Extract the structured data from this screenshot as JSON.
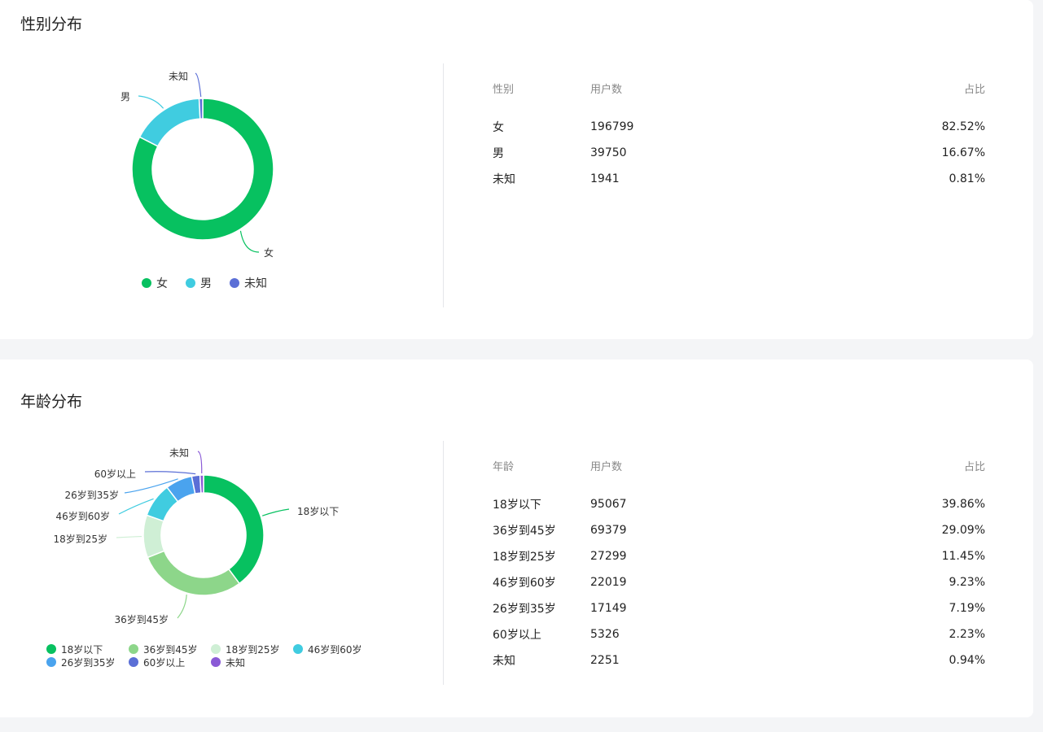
{
  "gender": {
    "title": "性别分布",
    "table_headers": [
      "性别",
      "用户数",
      "占比"
    ],
    "rows": [
      {
        "label": "女",
        "count": "196799",
        "pct": "82.52%"
      },
      {
        "label": "男",
        "count": "39750",
        "pct": "16.67%"
      },
      {
        "label": "未知",
        "count": "1941",
        "pct": "0.81%"
      }
    ]
  },
  "age": {
    "title": "年龄分布",
    "table_headers": [
      "年龄",
      "用户数",
      "占比"
    ],
    "rows": [
      {
        "label": "18岁以下",
        "count": "95067",
        "pct": "39.86%"
      },
      {
        "label": "36岁到45岁",
        "count": "69379",
        "pct": "29.09%"
      },
      {
        "label": "18岁到25岁",
        "count": "27299",
        "pct": "11.45%"
      },
      {
        "label": "46岁到60岁",
        "count": "22019",
        "pct": "9.23%"
      },
      {
        "label": "26岁到35岁",
        "count": "17149",
        "pct": "7.19%"
      },
      {
        "label": "60岁以上",
        "count": "5326",
        "pct": "2.23%"
      },
      {
        "label": "未知",
        "count": "2251",
        "pct": "0.94%"
      }
    ]
  },
  "chart_data": [
    {
      "type": "pie",
      "title": "性别分布",
      "categories": [
        "女",
        "男",
        "未知"
      ],
      "values": [
        196799,
        39750,
        1941
      ],
      "colors": [
        "#07c160",
        "#40cce0",
        "#5b6fd6"
      ],
      "legend": "bottom"
    },
    {
      "type": "pie",
      "title": "年龄分布",
      "categories": [
        "18岁以下",
        "36岁到45岁",
        "18岁到25岁",
        "46岁到60岁",
        "26岁到35岁",
        "60岁以上",
        "未知"
      ],
      "values": [
        95067,
        69379,
        27299,
        22019,
        17149,
        5326,
        2251
      ],
      "colors": [
        "#07c160",
        "#8dd68a",
        "#cfefd5",
        "#40cce0",
        "#4aa3ee",
        "#5b6fd6",
        "#8a5ad6"
      ],
      "legend": "bottom"
    }
  ]
}
